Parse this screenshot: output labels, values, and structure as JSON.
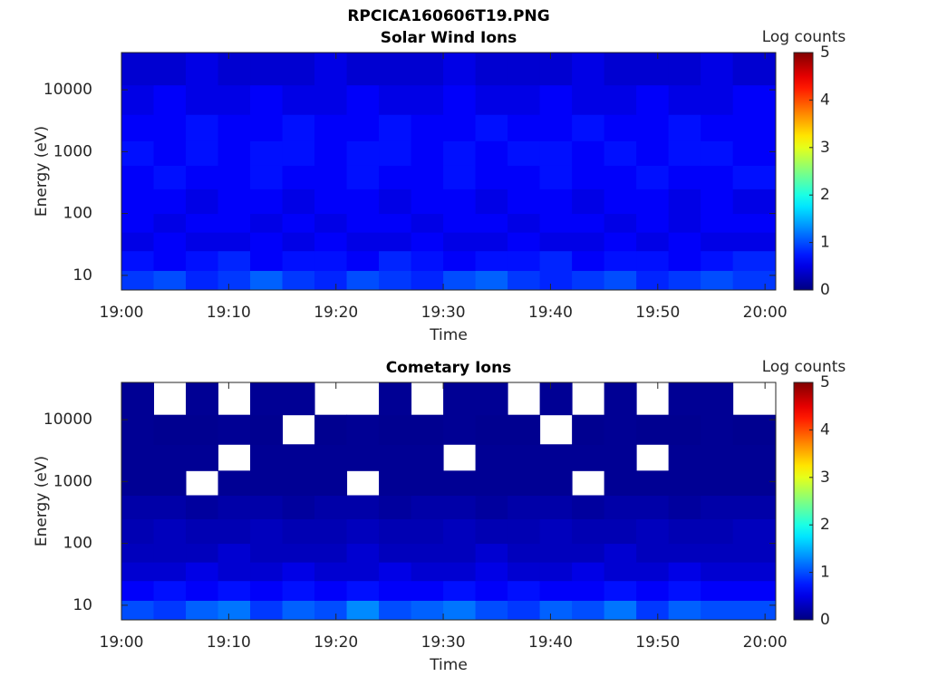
{
  "title": "RPCICA160606T19.PNG",
  "chart_data": [
    {
      "type": "heatmap",
      "title": "Solar Wind Ions",
      "xlabel": "Time",
      "ylabel": "Energy (eV)",
      "x_bins": [
        "19:00",
        "19:03",
        "19:06",
        "19:09",
        "19:12",
        "19:15",
        "19:18",
        "19:21",
        "19:24",
        "19:27",
        "19:30",
        "19:33",
        "19:36",
        "19:39",
        "19:42",
        "19:45",
        "19:48",
        "19:51",
        "19:54",
        "19:57",
        "20:01"
      ],
      "y_bins": [
        5.8,
        12,
        25,
        50,
        100,
        250,
        600,
        1500,
        4000,
        12000,
        40000
      ],
      "z": [
        [
          0.9,
          1.0,
          0.8,
          0.9,
          1.1,
          0.9,
          0.8,
          1.0,
          0.9,
          0.8,
          1.0,
          1.1,
          0.9,
          0.8,
          0.9,
          1.0,
          0.8,
          0.9,
          1.0,
          0.9
        ],
        [
          0.7,
          0.6,
          0.7,
          0.8,
          0.6,
          0.7,
          0.7,
          0.6,
          0.8,
          0.7,
          0.6,
          0.7,
          0.7,
          0.8,
          0.6,
          0.7,
          0.7,
          0.6,
          0.7,
          0.8
        ],
        [
          0.5,
          0.6,
          0.5,
          0.5,
          0.6,
          0.5,
          0.6,
          0.5,
          0.5,
          0.6,
          0.5,
          0.5,
          0.6,
          0.5,
          0.5,
          0.6,
          0.5,
          0.6,
          0.5,
          0.5
        ],
        [
          0.6,
          0.5,
          0.6,
          0.6,
          0.5,
          0.6,
          0.5,
          0.6,
          0.6,
          0.5,
          0.6,
          0.6,
          0.5,
          0.6,
          0.6,
          0.5,
          0.6,
          0.5,
          0.6,
          0.6
        ],
        [
          0.6,
          0.6,
          0.5,
          0.6,
          0.6,
          0.5,
          0.6,
          0.6,
          0.5,
          0.6,
          0.6,
          0.5,
          0.6,
          0.6,
          0.5,
          0.6,
          0.6,
          0.5,
          0.6,
          0.5
        ],
        [
          0.6,
          0.7,
          0.6,
          0.6,
          0.7,
          0.6,
          0.6,
          0.7,
          0.6,
          0.6,
          0.7,
          0.6,
          0.6,
          0.7,
          0.6,
          0.6,
          0.7,
          0.6,
          0.6,
          0.7
        ],
        [
          0.7,
          0.6,
          0.7,
          0.6,
          0.7,
          0.7,
          0.6,
          0.7,
          0.7,
          0.6,
          0.7,
          0.6,
          0.7,
          0.7,
          0.6,
          0.7,
          0.6,
          0.7,
          0.7,
          0.6
        ],
        [
          0.6,
          0.6,
          0.7,
          0.6,
          0.6,
          0.7,
          0.6,
          0.6,
          0.7,
          0.6,
          0.6,
          0.7,
          0.6,
          0.6,
          0.7,
          0.6,
          0.6,
          0.7,
          0.6,
          0.6
        ],
        [
          0.5,
          0.6,
          0.5,
          0.5,
          0.6,
          0.5,
          0.5,
          0.6,
          0.5,
          0.5,
          0.6,
          0.5,
          0.5,
          0.6,
          0.5,
          0.5,
          0.6,
          0.5,
          0.5,
          0.6
        ],
        [
          0.4,
          0.4,
          0.5,
          0.4,
          0.4,
          0.4,
          0.5,
          0.4,
          0.4,
          0.4,
          0.5,
          0.4,
          0.4,
          0.4,
          0.5,
          0.4,
          0.4,
          0.4,
          0.5,
          0.4
        ]
      ],
      "xlim": [
        "19:00",
        "20:01"
      ],
      "ylim": [
        5.8,
        40000
      ],
      "yscale": "log",
      "xticks": [
        "19:00",
        "19:10",
        "19:20",
        "19:30",
        "19:40",
        "19:50",
        "20:00"
      ],
      "yticks": [
        10,
        100,
        1000,
        10000
      ],
      "colormap": "jet",
      "clim": [
        0,
        5
      ],
      "cticks": [
        0,
        1,
        2,
        3,
        4,
        5
      ],
      "colorbar_label": "Log counts"
    },
    {
      "type": "heatmap",
      "title": "Cometary Ions",
      "xlabel": "Time",
      "ylabel": "Energy (eV)",
      "x_bins": [
        "19:00",
        "19:03",
        "19:06",
        "19:09",
        "19:12",
        "19:15",
        "19:18",
        "19:21",
        "19:24",
        "19:27",
        "19:30",
        "19:33",
        "19:36",
        "19:39",
        "19:42",
        "19:45",
        "19:48",
        "19:51",
        "19:54",
        "19:57",
        "20:01"
      ],
      "y_bins": [
        5.8,
        12,
        25,
        50,
        100,
        250,
        600,
        1500,
        4000,
        12000,
        40000
      ],
      "z": [
        [
          1.0,
          0.9,
          1.1,
          1.2,
          0.9,
          1.1,
          1.0,
          1.3,
          1.0,
          1.1,
          1.2,
          1.0,
          0.9,
          1.1,
          1.0,
          1.2,
          0.9,
          1.1,
          1.0,
          1.0
        ],
        [
          0.6,
          0.7,
          0.6,
          0.7,
          0.6,
          0.7,
          0.6,
          0.7,
          0.6,
          0.6,
          0.7,
          0.6,
          0.7,
          0.6,
          0.6,
          0.7,
          0.6,
          0.7,
          0.6,
          0.6
        ],
        [
          0.4,
          0.4,
          0.5,
          0.4,
          0.4,
          0.5,
          0.4,
          0.4,
          0.5,
          0.4,
          0.4,
          0.5,
          0.4,
          0.4,
          0.5,
          0.4,
          0.4,
          0.5,
          0.4,
          0.4
        ],
        [
          0.3,
          0.3,
          0.3,
          0.4,
          0.3,
          0.3,
          0.3,
          0.4,
          0.3,
          0.3,
          0.3,
          0.4,
          0.3,
          0.3,
          0.3,
          0.4,
          0.3,
          0.3,
          0.3,
          0.3
        ],
        [
          0.25,
          0.3,
          0.25,
          0.25,
          0.3,
          0.25,
          0.25,
          0.3,
          0.25,
          0.25,
          0.3,
          0.25,
          0.25,
          0.3,
          0.25,
          0.25,
          0.3,
          0.25,
          0.25,
          0.3
        ],
        [
          0.2,
          0.2,
          0.15,
          0.2,
          0.2,
          0.15,
          0.2,
          0.2,
          0.15,
          0.2,
          0.2,
          0.15,
          0.2,
          0.2,
          0.15,
          0.2,
          0.2,
          0.15,
          0.2,
          0.2
        ],
        [
          0.1,
          0.1,
          null,
          0.1,
          0.1,
          0.1,
          0.1,
          null,
          0.1,
          0.1,
          0.1,
          0.1,
          0.1,
          0.1,
          null,
          0.1,
          0.1,
          0.1,
          0.1,
          0.1
        ],
        [
          0.1,
          0.1,
          0.1,
          null,
          0.1,
          0.1,
          0.1,
          0.1,
          0.1,
          0.1,
          null,
          0.1,
          0.1,
          0.1,
          0.1,
          0.1,
          null,
          0.1,
          0.1,
          0.1
        ],
        [
          0.1,
          0.08,
          0.08,
          0.1,
          0.08,
          null,
          0.08,
          0.1,
          0.08,
          0.08,
          0.1,
          0.08,
          0.08,
          null,
          0.08,
          0.1,
          0.08,
          0.08,
          0.1,
          0.08
        ],
        [
          0.1,
          null,
          0.1,
          null,
          0.1,
          0.1,
          null,
          null,
          0.1,
          null,
          0.1,
          0.1,
          null,
          0.1,
          null,
          0.1,
          null,
          0.1,
          0.1,
          null
        ]
      ],
      "xlim": [
        "19:00",
        "20:01"
      ],
      "ylim": [
        5.8,
        40000
      ],
      "yscale": "log",
      "xticks": [
        "19:00",
        "19:10",
        "19:20",
        "19:30",
        "19:40",
        "19:50",
        "20:00"
      ],
      "yticks": [
        10,
        100,
        1000,
        10000
      ],
      "colormap": "jet",
      "clim": [
        0,
        5
      ],
      "cticks": [
        0,
        1,
        2,
        3,
        4,
        5
      ],
      "colorbar_label": "Log counts"
    }
  ]
}
